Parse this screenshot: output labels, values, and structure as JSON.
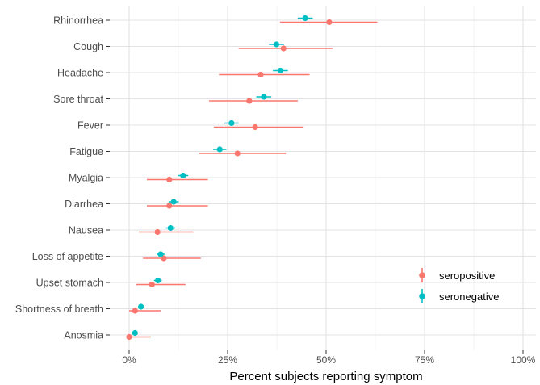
{
  "chart_data": {
    "type": "scatter",
    "subtype": "point-range (dot with error bars)",
    "title": "",
    "xlabel": "Percent subjects reporting symptom",
    "ylabel": "",
    "xlim": [
      0,
      1
    ],
    "x_ticks": [
      0,
      0.25,
      0.5,
      0.75,
      1.0
    ],
    "x_tick_labels": [
      "0%",
      "25%",
      "50%",
      "75%",
      "100%"
    ],
    "grid": true,
    "legend_position": "right-inside",
    "categories": [
      "Rhinorrhea",
      "Cough",
      "Headache",
      "Sore throat",
      "Fever",
      "Fatigue",
      "Myalgia",
      "Diarrhea",
      "Nausea",
      "Loss of appetite",
      "Upset stomach",
      "Shortness of breath",
      "Anosmia"
    ],
    "series": [
      {
        "name": "seropositive",
        "color": "#f8766d",
        "values": [
          0.508,
          0.392,
          0.334,
          0.305,
          0.32,
          0.275,
          0.102,
          0.102,
          0.072,
          0.088,
          0.058,
          0.015,
          0.0
        ],
        "lower": [
          0.383,
          0.278,
          0.228,
          0.203,
          0.215,
          0.178,
          0.045,
          0.045,
          0.025,
          0.035,
          0.018,
          0.0,
          0.0
        ],
        "upper": [
          0.63,
          0.516,
          0.458,
          0.428,
          0.443,
          0.398,
          0.2,
          0.2,
          0.163,
          0.182,
          0.143,
          0.08,
          0.055
        ]
      },
      {
        "name": "seronegative",
        "color": "#00bfc4",
        "values": [
          0.447,
          0.374,
          0.384,
          0.342,
          0.26,
          0.23,
          0.137,
          0.113,
          0.105,
          0.08,
          0.073,
          0.03,
          0.015
        ],
        "lower": [
          0.428,
          0.355,
          0.365,
          0.323,
          0.242,
          0.213,
          0.124,
          0.1,
          0.093,
          0.07,
          0.063,
          0.025,
          0.012
        ],
        "upper": [
          0.466,
          0.393,
          0.403,
          0.361,
          0.278,
          0.247,
          0.15,
          0.126,
          0.117,
          0.09,
          0.083,
          0.035,
          0.018
        ]
      }
    ]
  }
}
